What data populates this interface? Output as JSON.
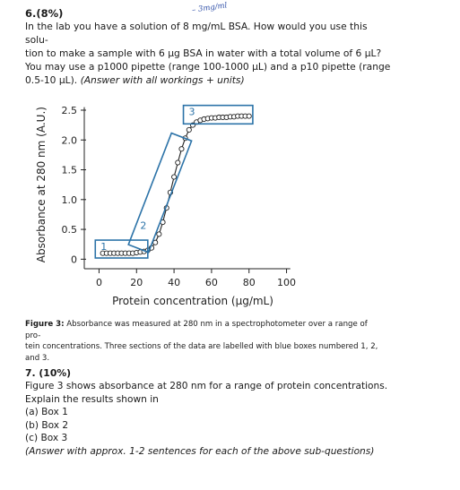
{
  "q6": {
    "number": "6.(8%)",
    "handwritten_note": "– 3mg/ml",
    "lines": [
      "In the lab you have a solution of 8 mg/mL BSA. How would you use this solu-",
      "tion to make a sample with 6 µg BSA in water with a total volume of 6 µL?",
      "You may use a p1000 pipette (range 100-1000 µL) and a p10 pipette (range",
      "0.5-10 µL)."
    ],
    "instruction": "(Answer with all workings + units)"
  },
  "chart_data": {
    "type": "scatter",
    "title": "",
    "xlabel": "Protein concentration (µg/mL)",
    "ylabel": "Absorbance at 280 nm (A.U.)",
    "xlim": [
      -5,
      105
    ],
    "ylim": [
      -0.1,
      2.65
    ],
    "x_ticks": [
      0,
      20,
      40,
      60,
      80,
      100
    ],
    "x_tick_labels": [
      "0",
      "20",
      "40",
      "60",
      "80",
      "100"
    ],
    "y_ticks": [
      0,
      0.5,
      1.0,
      1.5,
      2.0,
      2.5
    ],
    "y_tick_labels": [
      "0",
      "0.5",
      "1.0",
      "1.5",
      "2.0",
      "2.5"
    ],
    "series": [
      {
        "marker": "open-circle",
        "line": "solid",
        "x": [
          2,
          4,
          6,
          8,
          10,
          12,
          14,
          16,
          18,
          20,
          22,
          24,
          26,
          28,
          30,
          32,
          34,
          36,
          38,
          40,
          42,
          44,
          46,
          48,
          50,
          52,
          54,
          56,
          58,
          60,
          62,
          64,
          66,
          68,
          70,
          72,
          74,
          76,
          78,
          80
        ],
        "y": [
          0.1,
          0.1,
          0.1,
          0.1,
          0.1,
          0.1,
          0.1,
          0.1,
          0.1,
          0.11,
          0.12,
          0.13,
          0.15,
          0.19,
          0.28,
          0.42,
          0.62,
          0.86,
          1.12,
          1.38,
          1.62,
          1.85,
          2.03,
          2.17,
          2.25,
          2.3,
          2.33,
          2.35,
          2.36,
          2.37,
          2.37,
          2.38,
          2.38,
          2.38,
          2.39,
          2.39,
          2.4,
          2.4,
          2.4,
          2.4
        ]
      }
    ],
    "boxes": [
      {
        "label": "1",
        "x_range": [
          -2,
          26
        ],
        "y_range": [
          0.02,
          0.32
        ],
        "rotated": false
      },
      {
        "label": "2",
        "x_range": [
          21,
          44
        ],
        "y_range": [
          0.18,
          2.05
        ],
        "rotated": true
      },
      {
        "label": "3",
        "x_range": [
          45,
          82
        ],
        "y_range": [
          2.27,
          2.58
        ],
        "rotated": false
      }
    ],
    "box_color": "#2c73a8"
  },
  "caption": {
    "label": "Figure 3:",
    "lines": [
      "Absorbance was measured at 280 nm in a spectrophotometer over a range of pro-",
      "tein concentrations. Three sections of the data are labelled with blue boxes numbered 1, 2,",
      "and 3."
    ]
  },
  "q7": {
    "number": "7. (10%)",
    "lines": [
      "Figure 3 shows absorbance at 280 nm for a range of protein concentrations.",
      "Explain the results shown in",
      "(a) Box 1",
      "(b) Box 2",
      "(c) Box 3"
    ],
    "instruction": "(Answer with approx. 1-2 sentences for each of the above sub-questions)"
  }
}
